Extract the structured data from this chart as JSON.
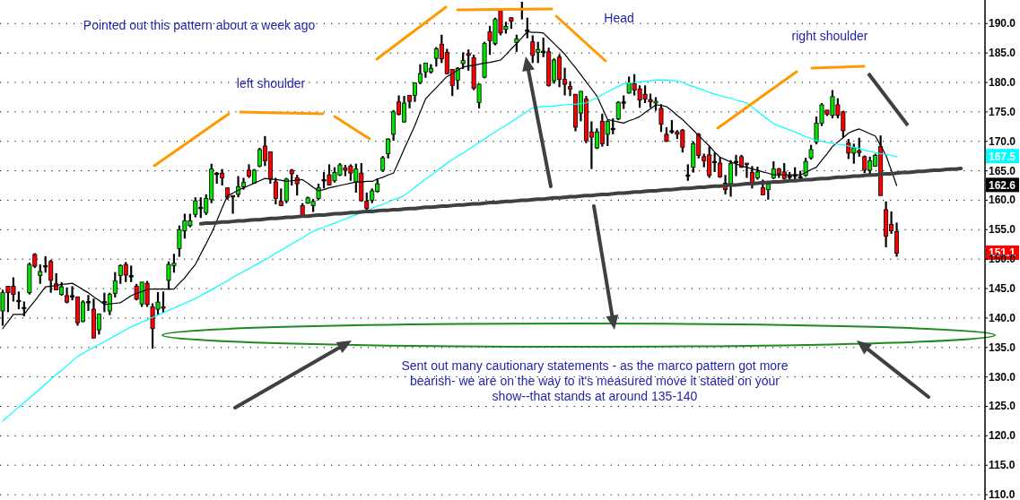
{
  "chart_data": {
    "type": "candlestick",
    "categories": [
      null,
      null,
      null,
      null,
      null,
      null,
      null,
      null,
      null,
      null,
      null,
      null,
      null,
      null,
      null,
      null,
      null,
      null,
      null,
      null,
      null,
      null,
      null,
      null,
      null,
      null,
      null,
      null,
      null,
      null,
      null,
      null,
      null,
      null,
      null,
      null,
      null,
      null,
      null,
      null,
      null,
      null,
      null,
      null,
      null,
      null,
      null,
      null,
      null,
      null,
      null,
      null,
      null,
      null,
      null,
      null,
      null,
      null,
      null,
      null,
      null,
      null,
      null,
      null,
      null,
      null,
      null,
      null,
      null,
      null,
      null,
      null,
      null,
      null,
      null,
      null,
      null,
      null,
      null,
      null,
      null,
      null,
      null,
      null,
      null,
      null,
      null,
      null,
      null,
      null,
      null,
      null,
      null,
      null,
      null,
      null,
      null,
      null,
      null,
      null,
      null,
      null,
      null,
      null,
      null,
      null,
      null,
      null,
      null,
      null,
      null,
      null,
      null,
      null,
      null,
      null,
      null,
      null,
      null,
      null,
      null,
      null,
      null,
      null,
      null,
      null,
      null,
      null,
      null,
      null,
      null,
      null,
      null,
      null,
      null,
      null,
      null,
      null,
      null,
      null,
      null,
      null,
      null,
      null,
      null,
      null,
      null,
      null,
      null,
      null,
      null,
      null,
      null,
      null,
      null,
      null,
      null,
      null,
      null,
      null,
      null,
      null,
      null,
      null,
      null,
      null,
      null,
      null,
      null,
      null,
      null,
      null,
      null,
      null,
      null,
      null,
      null,
      null,
      null,
      null,
      null,
      null,
      null,
      null
    ],
    "ohlc": [
      [
        141.2,
        144.8,
        138.7,
        144.3
      ],
      [
        145.4,
        145.4,
        141.0,
        144.3
      ],
      [
        145.4,
        146.9,
        142.8,
        144.0
      ],
      [
        143.0,
        144.5,
        141.5,
        143.0
      ],
      [
        141.8,
        142.8,
        140.3,
        141.8
      ],
      [
        144.3,
        149.4,
        144.0,
        149.1
      ],
      [
        150.8,
        151.0,
        148.5,
        148.8
      ],
      [
        147.2,
        149.1,
        145.8,
        147.9
      ],
      [
        148.9,
        150.5,
        147.7,
        148.9
      ],
      [
        149.6,
        149.9,
        144.3,
        146.4
      ],
      [
        145.8,
        147.6,
        144.7,
        144.8
      ],
      [
        144.0,
        146.1,
        143.8,
        145.3
      ],
      [
        143.8,
        145.2,
        142.5,
        142.7
      ],
      [
        143.8,
        145.4,
        143.0,
        143.8
      ],
      [
        143.6,
        143.6,
        138.7,
        139.2
      ],
      [
        139.4,
        143.0,
        139.3,
        142.7
      ],
      [
        142.8,
        143.9,
        141.2,
        142.8
      ],
      [
        141.5,
        143.3,
        136.6,
        136.6
      ],
      [
        138.0,
        140.7,
        137.2,
        140.7
      ],
      [
        142.8,
        144.3,
        141.0,
        142.8
      ],
      [
        141.2,
        144.3,
        140.5,
        144.0
      ],
      [
        144.2,
        147.8,
        143.5,
        146.3
      ],
      [
        147.2,
        149.1,
        145.8,
        148.9
      ],
      [
        149.1,
        149.5,
        146.1,
        147.3
      ],
      [
        147.2,
        148.9,
        146.1,
        147.2
      ],
      [
        145.4,
        145.8,
        143.0,
        143.2
      ],
      [
        142.4,
        146.1,
        141.9,
        146.1
      ],
      [
        145.9,
        146.3,
        141.9,
        142.3
      ],
      [
        141.9,
        142.5,
        134.8,
        138.2
      ],
      [
        141.5,
        144.4,
        140.5,
        142.7
      ],
      [
        141.9,
        144.5,
        140.9,
        141.7
      ],
      [
        146.4,
        149.6,
        144.8,
        149.1
      ],
      [
        148.9,
        150.9,
        147.7,
        149.3
      ],
      [
        151.8,
        155.7,
        150.4,
        155.0
      ],
      [
        154.8,
        157.7,
        153.5,
        156.5
      ],
      [
        155.7,
        157.7,
        155.4,
        156.5
      ],
      [
        157.6,
        160.5,
        157.1,
        159.9
      ],
      [
        158.8,
        160.5,
        157.0,
        158.8
      ],
      [
        157.9,
        161.0,
        157.5,
        160.3
      ],
      [
        160.1,
        166.2,
        159.5,
        165.3
      ],
      [
        164.6,
        164.8,
        162.8,
        164.6
      ],
      [
        164.6,
        165.3,
        162.5,
        163.8
      ],
      [
        162.1,
        162.1,
        160.1,
        160.5
      ],
      [
        160.8,
        160.8,
        157.7,
        160.6
      ],
      [
        161.0,
        164.1,
        160.5,
        162.3
      ],
      [
        162.3,
        163.8,
        161.8,
        163.0
      ],
      [
        165.1,
        166.1,
        163.8,
        164.1
      ],
      [
        162.9,
        165.3,
        162.8,
        165.1
      ],
      [
        165.8,
        168.9,
        165.6,
        168.6
      ],
      [
        169.2,
        170.9,
        165.8,
        166.7
      ],
      [
        168.2,
        168.2,
        162.8,
        163.6
      ],
      [
        163.1,
        163.8,
        159.3,
        160.3
      ],
      [
        159.8,
        162.0,
        159.0,
        159.1
      ],
      [
        159.9,
        163.8,
        159.5,
        163.6
      ],
      [
        165.1,
        165.3,
        162.5,
        164.5
      ],
      [
        163.8,
        164.3,
        160.8,
        162.8
      ],
      [
        159.1,
        159.5,
        157.2,
        157.4
      ],
      [
        159.5,
        160.6,
        159.4,
        160.4
      ],
      [
        159.1,
        160.2,
        158.0,
        159.8
      ],
      [
        160.3,
        162.8,
        160.0,
        162.1
      ],
      [
        163.5,
        164.8,
        162.0,
        163.5
      ],
      [
        164.3,
        166.1,
        162.5,
        162.6
      ],
      [
        163.3,
        165.6,
        163.0,
        164.7
      ],
      [
        164.3,
        166.3,
        164.1,
        166.0
      ],
      [
        165.5,
        166.0,
        164.1,
        165.1
      ],
      [
        165.8,
        166.1,
        163.3,
        164.6
      ],
      [
        163.1,
        166.2,
        161.3,
        165.3
      ],
      [
        164.6,
        166.3,
        159.8,
        159.9
      ],
      [
        159.8,
        161.3,
        158.4,
        158.6
      ],
      [
        160.0,
        162.0,
        159.5,
        161.6
      ],
      [
        161.5,
        163.7,
        161.3,
        162.8
      ],
      [
        165.1,
        167.5,
        164.8,
        167.2
      ],
      [
        167.9,
        170.5,
        167.1,
        170.4
      ],
      [
        171.2,
        175.3,
        170.1,
        175.0
      ],
      [
        176.7,
        177.8,
        174.4,
        174.6
      ],
      [
        173.3,
        177.7,
        173.2,
        176.5
      ],
      [
        177.8,
        177.8,
        175.6,
        176.8
      ],
      [
        177.8,
        180.0,
        176.7,
        179.9
      ],
      [
        180.0,
        183.1,
        179.7,
        181.5
      ],
      [
        181.8,
        183.3,
        180.8,
        183.3
      ],
      [
        181.8,
        183.1,
        181.5,
        182.4
      ],
      [
        184.1,
        186.0,
        182.7,
        185.7
      ],
      [
        186.5,
        188.1,
        183.3,
        184.0
      ],
      [
        185.1,
        185.7,
        181.4,
        181.5
      ],
      [
        182.2,
        182.2,
        177.7,
        179.5
      ],
      [
        180.4,
        182.6,
        178.8,
        182.4
      ],
      [
        183.2,
        185.1,
        182.3,
        183.7
      ],
      [
        184.9,
        185.6,
        182.0,
        184.6
      ],
      [
        184.2,
        184.7,
        178.7,
        179.0
      ],
      [
        176.6,
        179.8,
        175.6,
        179.7
      ],
      [
        180.9,
        186.9,
        180.7,
        186.6
      ],
      [
        188.6,
        189.6,
        184.7,
        187.1
      ],
      [
        186.6,
        191.0,
        186.3,
        190.7
      ],
      [
        192.2,
        192.2,
        188.0,
        188.4
      ],
      [
        189.0,
        190.3,
        188.3,
        189.5
      ],
      [
        191.0,
        191.0,
        189.1,
        190.4
      ],
      [
        186.8,
        188.1,
        185.2,
        187.4
      ],
      [
        192.3,
        193.7,
        190.7,
        192.5
      ],
      [
        188.9,
        191.0,
        187.5,
        188.9
      ],
      [
        186.9,
        188.0,
        183.3,
        184.6
      ],
      [
        185.1,
        186.9,
        183.3,
        185.6
      ],
      [
        185.3,
        187.6,
        184.3,
        185.3
      ],
      [
        185.2,
        185.9,
        179.3,
        179.5
      ],
      [
        180.3,
        184.1,
        179.8,
        183.8
      ],
      [
        184.3,
        184.8,
        179.2,
        180.5
      ],
      [
        180.5,
        182.5,
        177.8,
        179.7
      ],
      [
        179.3,
        180.2,
        177.7,
        178.9
      ],
      [
        178.0,
        178.0,
        171.7,
        172.4
      ],
      [
        174.8,
        178.5,
        173.4,
        178.5
      ],
      [
        177.2,
        177.7,
        169.7,
        170.1
      ],
      [
        171.6,
        173.4,
        165.3,
        170.7
      ],
      [
        168.9,
        172.2,
        168.7,
        171.6
      ],
      [
        173.4,
        174.7,
        169.1,
        169.6
      ],
      [
        171.2,
        173.6,
        169.2,
        173.4
      ],
      [
        172.2,
        173.9,
        171.2,
        172.2
      ],
      [
        173.8,
        176.8,
        173.6,
        176.6
      ],
      [
        176.7,
        177.8,
        175.5,
        176.7
      ],
      [
        178.2,
        181.0,
        178.1,
        179.9
      ],
      [
        179.8,
        181.4,
        177.8,
        178.7
      ],
      [
        178.9,
        179.5,
        175.7,
        177.0
      ],
      [
        178.0,
        179.5,
        176.5,
        177.2
      ],
      [
        177.1,
        178.1,
        175.7,
        176.7
      ],
      [
        176.5,
        177.5,
        175.2,
        176.8
      ],
      [
        175.6,
        176.3,
        171.6,
        172.9
      ],
      [
        171.2,
        172.4,
        169.9,
        170.0
      ],
      [
        171.8,
        173.6,
        171.3,
        171.8
      ],
      [
        171.6,
        171.9,
        170.4,
        171.2
      ],
      [
        171.9,
        172.1,
        168.1,
        169.0
      ],
      [
        164.3,
        166.1,
        163.3,
        164.3
      ],
      [
        165.6,
        170.0,
        164.7,
        169.6
      ],
      [
        171.2,
        171.4,
        167.1,
        167.6
      ],
      [
        167.4,
        167.9,
        165.6,
        166.7
      ],
      [
        167.7,
        169.1,
        163.8,
        164.2
      ],
      [
        166.6,
        168.1,
        164.8,
        166.6
      ],
      [
        166.3,
        167.3,
        163.8,
        164.0
      ],
      [
        162.9,
        164.3,
        161.0,
        161.8
      ],
      [
        162.8,
        166.8,
        160.6,
        166.2
      ],
      [
        166.6,
        167.7,
        164.1,
        166.6
      ],
      [
        167.4,
        167.7,
        165.5,
        165.6
      ],
      [
        166.3,
        166.3,
        163.8,
        166.1
      ],
      [
        164.7,
        165.8,
        162.0,
        163.0
      ],
      [
        163.8,
        165.7,
        163.5,
        164.8
      ],
      [
        162.1,
        163.5,
        160.9,
        160.9
      ],
      [
        161.8,
        163.3,
        160.1,
        162.8
      ],
      [
        163.8,
        166.6,
        163.6,
        165.3
      ],
      [
        165.3,
        165.5,
        163.8,
        164.5
      ],
      [
        164.8,
        166.3,
        163.5,
        163.7
      ],
      [
        164.1,
        164.8,
        163.5,
        164.1
      ],
      [
        164.3,
        165.6,
        163.5,
        164.3
      ],
      [
        164.0,
        165.0,
        163.6,
        164.0
      ],
      [
        164.2,
        167.2,
        164.0,
        166.6
      ],
      [
        167.2,
        169.4,
        166.9,
        168.6
      ],
      [
        169.9,
        174.2,
        169.5,
        173.1
      ],
      [
        173.1,
        176.5,
        172.6,
        176.2
      ],
      [
        175.3,
        175.3,
        174.3,
        174.6
      ],
      [
        174.4,
        178.7,
        173.9,
        177.6
      ],
      [
        176.2,
        177.3,
        173.9,
        174.4
      ],
      [
        175.0,
        175.2,
        170.6,
        171.8
      ],
      [
        169.7,
        170.4,
        167.0,
        168.0
      ],
      [
        168.0,
        169.6,
        166.2,
        168.9
      ],
      [
        168.4,
        170.6,
        167.4,
        168.1
      ],
      [
        167.4,
        167.6,
        164.6,
        165.1
      ],
      [
        165.1,
        167.4,
        164.0,
        166.7
      ],
      [
        165.8,
        167.9,
        165.7,
        167.6
      ],
      [
        169.1,
        171.0,
        160.8,
        160.8
      ],
      [
        158.4,
        159.8,
        152.0,
        153.9
      ],
      [
        155.9,
        158.1,
        154.3,
        154.8
      ],
      [
        154.7,
        156.2,
        150.4,
        151.0
      ],
      null,
      null,
      null,
      null,
      null,
      null,
      null,
      null,
      null,
      null,
      null,
      null,
      null,
      null,
      null,
      null
    ],
    "series": [
      {
        "type": "line",
        "color": "#000000",
        "values": [
          138.2,
          139.4,
          140.6,
          140.6,
          140.6,
          141.8,
          142.9,
          144.1,
          145.3,
          145.4,
          145.5,
          145.7,
          145.8,
          145.9,
          145.4,
          144.8,
          144.3,
          143.6,
          143.0,
          142.3,
          142.4,
          142.5,
          142.6,
          143.2,
          143.8,
          144.2,
          144.5,
          144.9,
          144.9,
          144.9,
          144.9,
          144.9,
          144.9,
          145.9,
          146.8,
          148.0,
          149.1,
          150.9,
          152.6,
          154.4,
          156.5,
          158.7,
          160.8,
          161.2,
          161.7,
          162.1,
          162.5,
          162.9,
          163.3,
          163.7,
          163.6,
          163.5,
          163.4,
          163.2,
          163.3,
          163.4,
          163.5,
          162.9,
          162.2,
          161.6,
          161.8,
          162.1,
          162.3,
          162.5,
          162.7,
          162.9,
          163.1,
          163.1,
          163.2,
          163.2,
          163.6,
          163.9,
          164.3,
          164.6,
          166.6,
          168.7,
          170.7,
          172.7,
          175.0,
          177.2,
          178.2,
          179.1,
          180.1,
          181.0,
          181.5,
          182.1,
          182.6,
          182.8,
          182.9,
          183.1,
          183.3,
          183.4,
          183.6,
          183.8,
          184.7,
          185.7,
          186.6,
          187.6,
          188.6,
          188.5,
          188.5,
          188.4,
          187.5,
          186.6,
          185.7,
          184.8,
          183.6,
          182.5,
          181.3,
          180.1,
          178.9,
          177.7,
          175.7,
          173.7,
          173.5,
          173.3,
          173.1,
          173.5,
          173.8,
          174.2,
          174.9,
          175.5,
          176.2,
          176.1,
          175.9,
          175.2,
          174.4,
          173.7,
          172.8,
          171.9,
          171.0,
          170.1,
          169.2,
          168.2,
          167.3,
          166.9,
          166.5,
          166.2,
          165.8,
          165.6,
          165.3,
          165.1,
          164.8,
          164.6,
          164.3,
          164.3,
          164.3,
          164.3,
          164.3,
          164.3,
          164.7,
          165.2,
          165.6,
          166.8,
          167.9,
          169.1,
          169.9,
          170.6,
          171.4,
          171.8,
          172.1,
          171.7,
          171.3,
          170.9,
          169.3,
          167.6,
          165.1,
          162.5,
          null,
          null,
          null,
          null,
          null,
          null,
          null,
          null,
          null,
          null,
          null,
          null,
          null,
          null,
          null,
          null
        ]
      },
      {
        "type": "line",
        "color": "#00ffff",
        "values": [
          122.5,
          123.3,
          124.1,
          124.9,
          125.6,
          126.4,
          127.2,
          128.0,
          128.8,
          129.6,
          130.4,
          131.1,
          131.9,
          132.7,
          133.5,
          134.0,
          134.5,
          135.0,
          135.5,
          136.0,
          136.5,
          137.0,
          137.5,
          138.0,
          138.5,
          138.9,
          139.3,
          139.7,
          140.1,
          140.5,
          140.9,
          141.3,
          141.7,
          142.1,
          142.5,
          142.9,
          143.3,
          143.8,
          144.3,
          144.8,
          145.3,
          145.8,
          146.3,
          146.9,
          147.4,
          147.9,
          148.4,
          148.9,
          149.4,
          149.9,
          150.4,
          151.0,
          151.5,
          152.0,
          152.6,
          153.1,
          153.6,
          154.2,
          154.7,
          155.1,
          155.4,
          155.8,
          156.1,
          156.5,
          156.8,
          157.2,
          157.5,
          157.9,
          158.2,
          158.6,
          159.0,
          159.3,
          159.7,
          160.1,
          160.4,
          160.8,
          161.5,
          162.2,
          162.9,
          163.6,
          164.2,
          164.9,
          165.6,
          166.3,
          166.9,
          167.5,
          168.0,
          168.6,
          169.2,
          169.8,
          170.4,
          171.0,
          171.6,
          172.2,
          172.7,
          173.3,
          173.9,
          174.5,
          175.1,
          175.7,
          175.8,
          175.9,
          175.9,
          176.0,
          176.1,
          176.2,
          176.3,
          176.3,
          176.4,
          176.5,
          177.0,
          177.4,
          177.9,
          178.4,
          178.9,
          179.3,
          179.8,
          179.9,
          180.0,
          180.1,
          180.2,
          180.3,
          180.4,
          180.4,
          180.4,
          180.3,
          180.3,
          180.0,
          179.6,
          179.3,
          179.0,
          178.7,
          178.3,
          178.0,
          177.8,
          177.5,
          177.3,
          177.0,
          176.8,
          176.5,
          175.8,
          175.1,
          174.4,
          173.7,
          173.0,
          172.6,
          172.3,
          171.9,
          171.6,
          171.2,
          170.8,
          170.5,
          170.1,
          170.0,
          169.8,
          169.7,
          169.5,
          169.4,
          169.2,
          169.0,
          168.8,
          168.5,
          168.3,
          168.1,
          167.9,
          167.8,
          167.6,
          167.4,
          null,
          null,
          null,
          null,
          null,
          null,
          null,
          null,
          null,
          null,
          null,
          null,
          null,
          null,
          null,
          null
        ]
      },
      {
        "type": "line",
        "color": "#404040",
        "values": [
          null,
          null,
          null,
          null,
          null,
          null,
          null,
          null,
          null,
          null,
          null,
          null,
          null,
          null,
          null,
          null,
          null,
          null,
          null,
          null,
          null,
          null,
          null,
          null,
          null,
          null,
          null,
          null,
          null,
          null,
          null,
          null,
          null,
          null,
          null,
          null,
          null,
          156.0,
          156.1,
          156.1,
          156.2,
          156.3,
          156.3,
          156.4,
          156.5,
          156.5,
          156.6,
          156.7,
          156.7,
          156.8,
          156.9,
          156.9,
          157.0,
          157.1,
          157.1,
          157.2,
          157.3,
          157.3,
          157.4,
          157.5,
          157.5,
          157.6,
          157.7,
          157.7,
          157.8,
          157.9,
          157.9,
          158.0,
          158.1,
          158.1,
          158.2,
          158.3,
          158.3,
          158.4,
          158.4,
          158.5,
          158.6,
          158.6,
          158.7,
          158.8,
          158.8,
          158.9,
          159.0,
          159.0,
          159.1,
          159.2,
          159.2,
          159.3,
          159.4,
          159.4,
          159.5,
          159.6,
          159.6,
          159.7,
          159.8,
          159.8,
          159.9,
          160.0,
          160.0,
          160.1,
          160.2,
          160.2,
          160.3,
          160.4,
          160.4,
          160.5,
          160.6,
          160.6,
          160.7,
          160.8,
          160.8,
          160.9,
          161.0,
          161.0,
          161.1,
          161.2,
          161.2,
          161.3,
          161.4,
          161.4,
          161.5,
          161.6,
          161.6,
          161.7,
          161.8,
          161.8,
          161.9,
          162.0,
          162.0,
          162.1,
          162.2,
          162.2,
          162.3,
          162.4,
          162.4,
          162.5,
          162.6,
          162.6,
          162.7,
          162.8,
          162.8,
          162.9,
          163.0,
          163.0,
          163.1,
          163.1,
          163.2,
          163.3,
          163.3,
          163.4,
          163.5,
          163.5,
          163.6,
          163.7,
          163.7,
          163.8,
          163.9,
          163.9,
          164.0,
          164.1,
          164.1,
          164.2,
          164.3,
          164.3,
          164.4,
          164.5,
          164.5,
          164.6,
          164.7,
          164.7,
          164.8,
          164.9,
          164.9,
          165.0,
          165.1,
          165.1,
          165.2,
          165.3,
          165.3,
          165.4,
          null,
          null,
          null,
          null
        ]
      }
    ],
    "ylim": [
      109.1,
      194.0
    ],
    "yticks": [
      {
        "value": 110,
        "label": "110.0"
      },
      {
        "value": 115,
        "label": "115.0"
      },
      {
        "value": 120,
        "label": "120.0"
      },
      {
        "value": 125,
        "label": "125.0"
      },
      {
        "value": 130,
        "label": "130.0"
      },
      {
        "value": 135,
        "label": "135.0"
      },
      {
        "value": 140,
        "label": "140.0"
      },
      {
        "value": 145,
        "label": "145.0"
      },
      {
        "value": 150,
        "label": "150.0"
      },
      {
        "value": 155,
        "label": "155.0"
      },
      {
        "value": 160,
        "label": "160.0"
      },
      {
        "value": 165,
        "label": "165.0"
      },
      {
        "value": 170,
        "label": "170.0"
      },
      {
        "value": 175,
        "label": "175.0"
      },
      {
        "value": 180,
        "label": "180.0"
      },
      {
        "value": 185,
        "label": "185.0"
      },
      {
        "value": 190,
        "label": "190.0"
      }
    ],
    "tick_labels": "y",
    "grid": "y",
    "annotations": [
      "Pointed out this pattern about a week ago",
      "left shoulder",
      "Head",
      "right shoulder",
      "Sent out many cautionary statements - as the marco pattern got more bearish- we are on the way to it's measured move it stated on your show--that stands at around 135-140",
      {
        "text": "167.5",
        "y": 167.5
      },
      {
        "text": "162.6",
        "y": 162.6
      },
      {
        "text": "151.1",
        "y": 151.1
      }
    ]
  }
}
